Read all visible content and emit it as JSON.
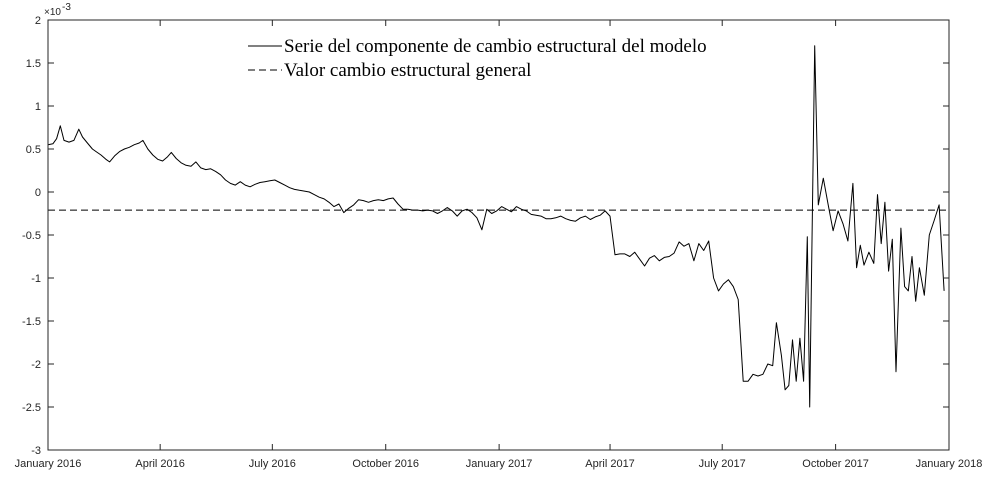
{
  "chart_data": {
    "type": "line",
    "title": "",
    "xlabel": "",
    "ylabel": "",
    "y_exponent_label": "×10",
    "y_exponent_power": "-3",
    "ylim": [
      -3,
      2
    ],
    "grid": false,
    "legend_position": "top",
    "x_ticks": [
      "January 2016",
      "April 2016",
      "July 2016",
      "October 2016",
      "January 2017",
      "April 2017",
      "July 2017",
      "October 2017",
      "January 2018"
    ],
    "y_ticks": [
      "-3",
      "-2.5",
      "-2",
      "-1.5",
      "-1",
      "-0.5",
      "0",
      "0.5",
      "1",
      "1.5",
      "2"
    ],
    "series": [
      {
        "name": "Serie del componente de cambio estructural del modelo",
        "style": "solid",
        "color": "#000000",
        "points": [
          [
            "2016-01-01",
            0.55
          ],
          [
            "2016-01-05",
            0.56
          ],
          [
            "2016-01-08",
            0.62
          ],
          [
            "2016-01-11",
            0.77
          ],
          [
            "2016-01-14",
            0.6
          ],
          [
            "2016-01-18",
            0.58
          ],
          [
            "2016-01-22",
            0.6
          ],
          [
            "2016-01-26",
            0.73
          ],
          [
            "2016-01-29",
            0.64
          ],
          [
            "2016-02-02",
            0.57
          ],
          [
            "2016-02-06",
            0.5
          ],
          [
            "2016-02-09",
            0.47
          ],
          [
            "2016-02-13",
            0.43
          ],
          [
            "2016-02-17",
            0.38
          ],
          [
            "2016-02-20",
            0.35
          ],
          [
            "2016-02-24",
            0.42
          ],
          [
            "2016-02-28",
            0.47
          ],
          [
            "2016-03-03",
            0.5
          ],
          [
            "2016-03-07",
            0.52
          ],
          [
            "2016-03-11",
            0.55
          ],
          [
            "2016-03-15",
            0.57
          ],
          [
            "2016-03-18",
            0.6
          ],
          [
            "2016-03-22",
            0.5
          ],
          [
            "2016-03-26",
            0.43
          ],
          [
            "2016-03-30",
            0.38
          ],
          [
            "2016-04-03",
            0.36
          ],
          [
            "2016-04-07",
            0.41
          ],
          [
            "2016-04-10",
            0.46
          ],
          [
            "2016-04-14",
            0.39
          ],
          [
            "2016-04-18",
            0.34
          ],
          [
            "2016-04-22",
            0.31
          ],
          [
            "2016-04-26",
            0.3
          ],
          [
            "2016-04-30",
            0.35
          ],
          [
            "2016-05-04",
            0.28
          ],
          [
            "2016-05-08",
            0.26
          ],
          [
            "2016-05-12",
            0.27
          ],
          [
            "2016-05-16",
            0.24
          ],
          [
            "2016-05-20",
            0.2
          ],
          [
            "2016-05-24",
            0.14
          ],
          [
            "2016-05-28",
            0.1
          ],
          [
            "2016-06-01",
            0.08
          ],
          [
            "2016-06-05",
            0.12
          ],
          [
            "2016-06-09",
            0.08
          ],
          [
            "2016-06-13",
            0.06
          ],
          [
            "2016-06-17",
            0.09
          ],
          [
            "2016-06-21",
            0.11
          ],
          [
            "2016-06-25",
            0.12
          ],
          [
            "2016-06-29",
            0.13
          ],
          [
            "2016-07-03",
            0.14
          ],
          [
            "2016-07-07",
            0.11
          ],
          [
            "2016-07-11",
            0.08
          ],
          [
            "2016-07-15",
            0.05
          ],
          [
            "2016-07-19",
            0.03
          ],
          [
            "2016-07-23",
            0.02
          ],
          [
            "2016-07-27",
            0.01
          ],
          [
            "2016-07-31",
            0.0
          ],
          [
            "2016-08-04",
            -0.03
          ],
          [
            "2016-08-08",
            -0.06
          ],
          [
            "2016-08-12",
            -0.08
          ],
          [
            "2016-08-16",
            -0.12
          ],
          [
            "2016-08-20",
            -0.17
          ],
          [
            "2016-08-24",
            -0.14
          ],
          [
            "2016-08-28",
            -0.24
          ],
          [
            "2016-09-01",
            -0.19
          ],
          [
            "2016-09-05",
            -0.15
          ],
          [
            "2016-09-09",
            -0.09
          ],
          [
            "2016-09-13",
            -0.1
          ],
          [
            "2016-09-17",
            -0.12
          ],
          [
            "2016-09-21",
            -0.1
          ],
          [
            "2016-09-25",
            -0.09
          ],
          [
            "2016-09-29",
            -0.1
          ],
          [
            "2016-10-03",
            -0.08
          ],
          [
            "2016-10-07",
            -0.07
          ],
          [
            "2016-10-11",
            -0.14
          ],
          [
            "2016-10-15",
            -0.2
          ],
          [
            "2016-10-19",
            -0.2
          ],
          [
            "2016-10-23",
            -0.21
          ],
          [
            "2016-10-27",
            -0.21
          ],
          [
            "2016-10-31",
            -0.22
          ],
          [
            "2016-11-04",
            -0.21
          ],
          [
            "2016-11-08",
            -0.22
          ],
          [
            "2016-11-12",
            -0.25
          ],
          [
            "2016-11-16",
            -0.22
          ],
          [
            "2016-11-20",
            -0.18
          ],
          [
            "2016-11-24",
            -0.22
          ],
          [
            "2016-11-28",
            -0.28
          ],
          [
            "2016-12-02",
            -0.22
          ],
          [
            "2016-12-06",
            -0.2
          ],
          [
            "2016-12-10",
            -0.24
          ],
          [
            "2016-12-14",
            -0.3
          ],
          [
            "2016-12-18",
            -0.44
          ],
          [
            "2016-12-22",
            -0.2
          ],
          [
            "2016-12-26",
            -0.25
          ],
          [
            "2016-12-30",
            -0.22
          ],
          [
            "2017-01-03",
            -0.17
          ],
          [
            "2017-01-07",
            -0.2
          ],
          [
            "2017-01-11",
            -0.23
          ],
          [
            "2017-01-15",
            -0.17
          ],
          [
            "2017-01-19",
            -0.2
          ],
          [
            "2017-01-23",
            -0.22
          ],
          [
            "2017-01-27",
            -0.26
          ],
          [
            "2017-01-31",
            -0.27
          ],
          [
            "2017-02-04",
            -0.28
          ],
          [
            "2017-02-08",
            -0.31
          ],
          [
            "2017-02-12",
            -0.31
          ],
          [
            "2017-02-16",
            -0.3
          ],
          [
            "2017-02-20",
            -0.28
          ],
          [
            "2017-02-24",
            -0.31
          ],
          [
            "2017-02-28",
            -0.33
          ],
          [
            "2017-03-04",
            -0.34
          ],
          [
            "2017-03-08",
            -0.3
          ],
          [
            "2017-03-12",
            -0.28
          ],
          [
            "2017-03-16",
            -0.32
          ],
          [
            "2017-03-20",
            -0.29
          ],
          [
            "2017-03-24",
            -0.27
          ],
          [
            "2017-03-28",
            -0.22
          ],
          [
            "2017-04-01",
            -0.28
          ],
          [
            "2017-04-05",
            -0.73
          ],
          [
            "2017-04-09",
            -0.72
          ],
          [
            "2017-04-13",
            -0.72
          ],
          [
            "2017-04-17",
            -0.75
          ],
          [
            "2017-04-21",
            -0.7
          ],
          [
            "2017-04-25",
            -0.78
          ],
          [
            "2017-04-29",
            -0.86
          ],
          [
            "2017-05-03",
            -0.77
          ],
          [
            "2017-05-07",
            -0.74
          ],
          [
            "2017-05-11",
            -0.8
          ],
          [
            "2017-05-15",
            -0.76
          ],
          [
            "2017-05-19",
            -0.75
          ],
          [
            "2017-05-23",
            -0.71
          ],
          [
            "2017-05-27",
            -0.58
          ],
          [
            "2017-05-31",
            -0.63
          ],
          [
            "2017-06-04",
            -0.6
          ],
          [
            "2017-06-08",
            -0.8
          ],
          [
            "2017-06-12",
            -0.6
          ],
          [
            "2017-06-16",
            -0.68
          ],
          [
            "2017-06-20",
            -0.57
          ],
          [
            "2017-06-24",
            -1.0
          ],
          [
            "2017-06-28",
            -1.15
          ],
          [
            "2017-07-02",
            -1.07
          ],
          [
            "2017-07-06",
            -1.02
          ],
          [
            "2017-07-10",
            -1.1
          ],
          [
            "2017-07-14",
            -1.25
          ],
          [
            "2017-07-18",
            -2.2
          ],
          [
            "2017-07-22",
            -2.2
          ],
          [
            "2017-07-26",
            -2.12
          ],
          [
            "2017-07-30",
            -2.14
          ],
          [
            "2017-08-03",
            -2.12
          ],
          [
            "2017-08-07",
            -2.0
          ],
          [
            "2017-08-11",
            -2.02
          ],
          [
            "2017-08-14",
            -1.52
          ],
          [
            "2017-08-18",
            -1.9
          ],
          [
            "2017-08-21",
            -2.3
          ],
          [
            "2017-08-24",
            -2.25
          ],
          [
            "2017-08-27",
            -1.72
          ],
          [
            "2017-08-30",
            -2.2
          ],
          [
            "2017-09-02",
            -1.7
          ],
          [
            "2017-09-05",
            -2.2
          ],
          [
            "2017-09-08",
            -0.52
          ],
          [
            "2017-09-10",
            -2.5
          ],
          [
            "2017-09-14",
            1.7
          ],
          [
            "2017-09-17",
            -0.15
          ],
          [
            "2017-09-21",
            0.16
          ],
          [
            "2017-09-25",
            -0.15
          ],
          [
            "2017-09-29",
            -0.45
          ],
          [
            "2017-10-03",
            -0.22
          ],
          [
            "2017-10-07",
            -0.37
          ],
          [
            "2017-10-11",
            -0.57
          ],
          [
            "2017-10-15",
            0.1
          ],
          [
            "2017-10-18",
            -0.88
          ],
          [
            "2017-10-21",
            -0.62
          ],
          [
            "2017-10-24",
            -0.85
          ],
          [
            "2017-10-28",
            -0.7
          ],
          [
            "2017-11-01",
            -0.83
          ],
          [
            "2017-11-04",
            -0.03
          ],
          [
            "2017-11-07",
            -0.6
          ],
          [
            "2017-11-10",
            -0.12
          ],
          [
            "2017-11-13",
            -0.92
          ],
          [
            "2017-11-16",
            -0.55
          ],
          [
            "2017-11-19",
            -2.09
          ],
          [
            "2017-11-23",
            -0.42
          ],
          [
            "2017-11-26",
            -1.1
          ],
          [
            "2017-11-29",
            -1.15
          ],
          [
            "2017-12-02",
            -0.75
          ],
          [
            "2017-12-05",
            -1.27
          ],
          [
            "2017-12-08",
            -0.88
          ],
          [
            "2017-12-12",
            -1.2
          ],
          [
            "2017-12-16",
            -0.5
          ],
          [
            "2017-12-20",
            -0.33
          ],
          [
            "2017-12-24",
            -0.15
          ],
          [
            "2017-12-28",
            -1.15
          ]
        ]
      },
      {
        "name": "Valor cambio estructural general",
        "style": "dashed",
        "color": "#000000",
        "points": [
          [
            "2016-01-01",
            -0.21
          ],
          [
            "2018-01-01",
            -0.21
          ]
        ]
      }
    ]
  }
}
